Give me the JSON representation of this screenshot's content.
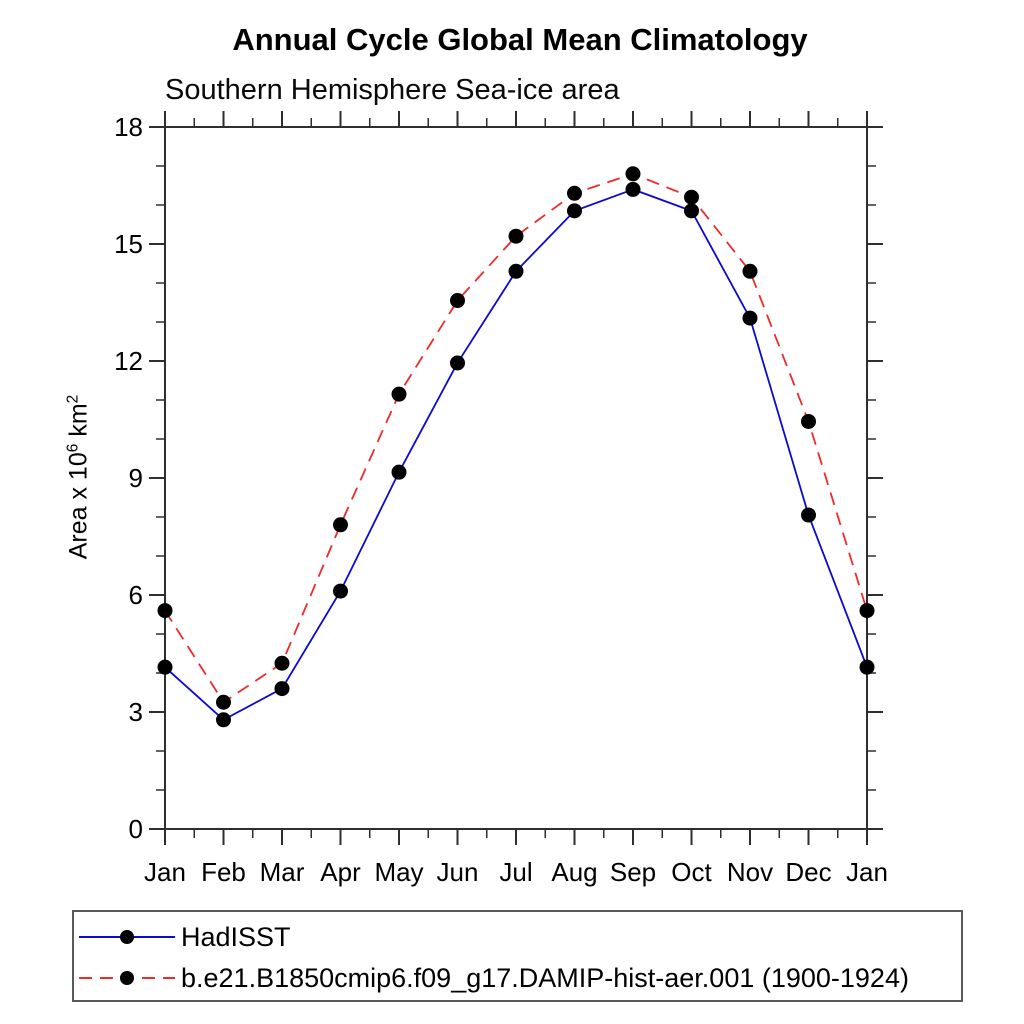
{
  "header": {
    "title": "Annual Cycle Global Mean Climatology",
    "subtitle": "Southern Hemisphere Sea-ice area"
  },
  "y_axis_label": {
    "prefix": "Area x 10",
    "sup1": "6",
    "mid": " km",
    "sup2": "2"
  },
  "chart_data": {
    "type": "line",
    "title": "Annual Cycle Global Mean Climatology",
    "subtitle": "Southern Hemisphere Sea-ice area",
    "xlabel": "",
    "ylabel": "Area x 10^6 km^2",
    "categories": [
      "Jan",
      "Feb",
      "Mar",
      "Apr",
      "May",
      "Jun",
      "Jul",
      "Aug",
      "Sep",
      "Oct",
      "Nov",
      "Dec",
      "Jan"
    ],
    "ylim": [
      0,
      18
    ],
    "y_major_ticks": [
      0,
      3,
      6,
      9,
      12,
      15,
      18
    ],
    "y_minor_step": 1,
    "grid": false,
    "legend_position": "bottom",
    "marker": {
      "shape": "circle",
      "color": "#000000"
    },
    "axis_color": "#2e2e2e",
    "series": [
      {
        "name": "HadISST",
        "color": "#0a0ad0",
        "line_style": "solid",
        "values": [
          4.15,
          2.8,
          3.6,
          6.1,
          9.15,
          11.95,
          14.3,
          15.85,
          16.4,
          15.85,
          13.1,
          8.05,
          4.15
        ]
      },
      {
        "name": "b.e21.B1850cmip6.f09_g17.DAMIP-hist-aer.001 (1900-1924)",
        "color": "#ee2a2a",
        "line_style": "dashed",
        "values": [
          5.6,
          3.25,
          4.25,
          7.8,
          11.15,
          13.55,
          15.2,
          16.3,
          16.8,
          16.2,
          14.3,
          10.45,
          5.6
        ]
      }
    ]
  }
}
